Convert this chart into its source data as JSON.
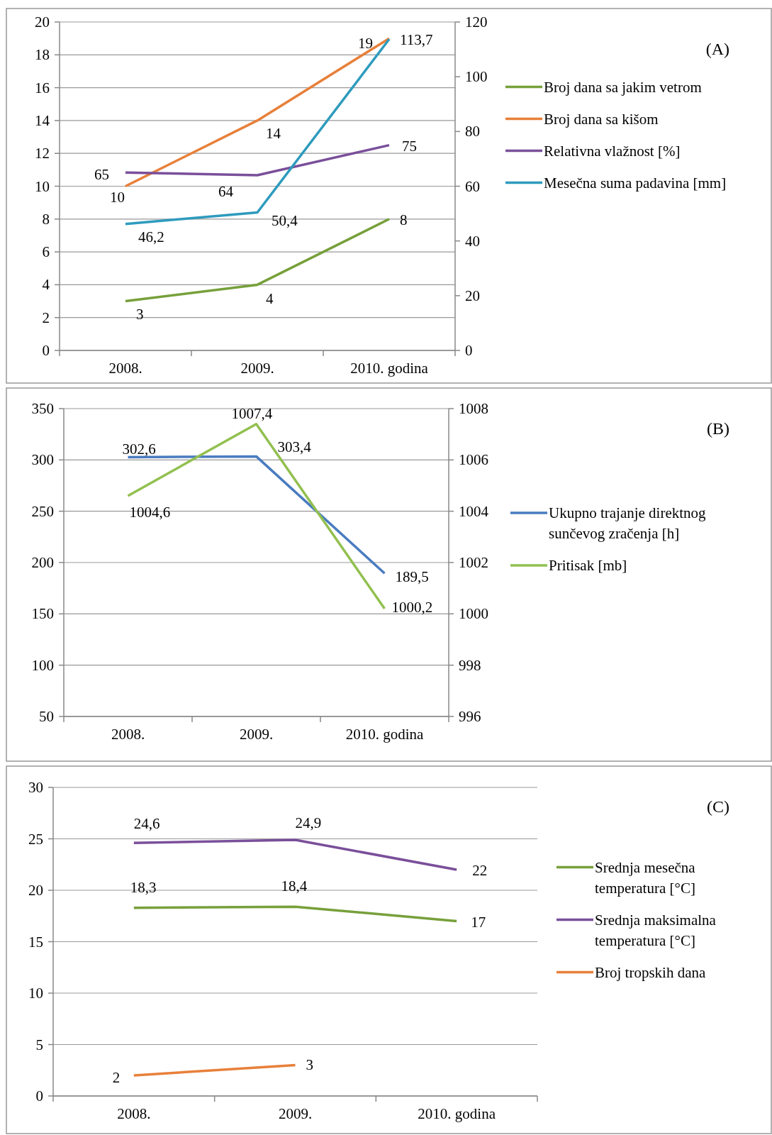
{
  "chart_data": [
    {
      "type": "line",
      "categories": [
        "2008.",
        "2009.",
        "2010. godina"
      ],
      "ylim": [
        0,
        20
      ],
      "yticks": [
        0,
        2,
        4,
        6,
        8,
        10,
        12,
        14,
        16,
        18,
        20
      ],
      "y2lim": [
        0,
        120
      ],
      "y2ticks": [
        0,
        20,
        40,
        60,
        80,
        100,
        120
      ],
      "grid": "y",
      "legend": "right",
      "annotations": [
        "(A)"
      ],
      "series": [
        {
          "name": "Broj dana sa jakim vetrom",
          "color": "#77a03b",
          "values": [
            3,
            4,
            8
          ],
          "value_labels": [
            "3",
            "4",
            "8"
          ]
        },
        {
          "name": "Broj dana sa kišom",
          "color": "#e8803a",
          "values": [
            10,
            14,
            19
          ],
          "value_labels": [
            "10",
            "14",
            "19"
          ]
        },
        {
          "name": "Relativna vlažnost [%]",
          "color": "#7a4f9a",
          "axis": "y2",
          "values": [
            65,
            64,
            75
          ],
          "value_labels": [
            "65",
            "64",
            "75"
          ]
        },
        {
          "name": "Mesečna suma padavina [mm]",
          "color": "#2e9bbd",
          "axis": "y2",
          "values": [
            46.2,
            50.4,
            113.7
          ],
          "value_labels": [
            "46,2",
            "50,4",
            "113,7"
          ]
        }
      ]
    },
    {
      "type": "line",
      "categories": [
        "2008.",
        "2009.",
        "2010. godina"
      ],
      "ylim": [
        50,
        350
      ],
      "yticks": [
        50,
        100,
        150,
        200,
        250,
        300,
        350
      ],
      "y2lim": [
        996,
        1008
      ],
      "y2ticks": [
        996,
        998,
        1000,
        1002,
        1004,
        1006,
        1008
      ],
      "grid": "y",
      "legend": "right",
      "annotations": [
        "(B)"
      ],
      "series": [
        {
          "name": "Ukupno trajanje direktnog sunčevog zračenja [h]",
          "color": "#4a7cc0",
          "values": [
            302.6,
            303.4,
            189.5
          ],
          "value_labels": [
            "302,6",
            "303,4",
            "189,5"
          ]
        },
        {
          "name": "Pritisak [mb]",
          "color": "#92c050",
          "axis": "y2",
          "values": [
            1004.6,
            1007.4,
            1000.2
          ],
          "value_labels": [
            "1004,6",
            "1007,4",
            "1000,2"
          ]
        }
      ]
    },
    {
      "type": "line",
      "categories": [
        "2008.",
        "2009.",
        "2010. godina"
      ],
      "ylim": [
        0,
        30
      ],
      "yticks": [
        0,
        5,
        10,
        15,
        20,
        25,
        30
      ],
      "grid": "y",
      "legend": "right",
      "annotations": [
        "(C)"
      ],
      "series": [
        {
          "name": "Srednja mesečna temperatura [°C]",
          "color": "#77a03b",
          "values": [
            18.3,
            18.4,
            17
          ],
          "value_labels": [
            "18,3",
            "18,4",
            "17"
          ]
        },
        {
          "name": "Srednja maksimalna temperatura [°C]",
          "color": "#7a4f9a",
          "values": [
            24.6,
            24.9,
            22
          ],
          "value_labels": [
            "24,6",
            "24,9",
            "22"
          ]
        },
        {
          "name": "Broj tropskih dana",
          "color": "#e8803a",
          "values": [
            2,
            3,
            null
          ],
          "value_labels": [
            "2",
            "3",
            null
          ]
        }
      ]
    }
  ]
}
